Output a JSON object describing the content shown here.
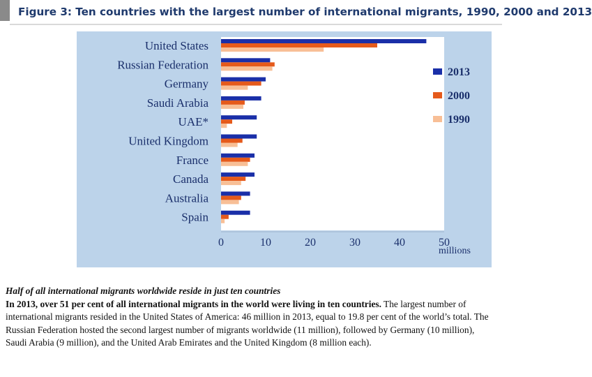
{
  "figure": {
    "title": "Figure 3: Ten countries with the largest number of international migrants, 1990, 2000 and 2013"
  },
  "chart_data": {
    "type": "bar",
    "orientation": "horizontal",
    "categories": [
      "United States",
      "Russian Federation",
      "Germany",
      "Saudi Arabia",
      "UAE*",
      "United Kingdom",
      "France",
      "Canada",
      "Australia",
      "Spain"
    ],
    "series": [
      {
        "name": "2013",
        "color": "#1a2fa8",
        "values": [
          46,
          11,
          10,
          9,
          8,
          8,
          7.5,
          7.5,
          6.5,
          6.5
        ]
      },
      {
        "name": "2000",
        "color": "#e55a1b",
        "values": [
          35,
          12,
          9,
          5.3,
          2.5,
          4.8,
          6.5,
          5.5,
          4.5,
          1.7
        ]
      },
      {
        "name": "1990",
        "color": "#f8bf96",
        "values": [
          23,
          11.5,
          6,
          5,
          1.3,
          3.7,
          6,
          4.5,
          4,
          0.8
        ]
      }
    ],
    "x_ticks": [
      0,
      10,
      20,
      30,
      40,
      50
    ],
    "xlim": [
      0,
      50
    ],
    "x_unit": "millions",
    "legend_position": "right"
  },
  "caption": {
    "heading": "Half of all international migrants worldwide reside in just ten countries",
    "lead": "In 2013, over 51 per cent of all international migrants in the world were living in ten countries.",
    "body": " The largest number of international migrants resided in the United States of America: 46 million in 2013, equal to 19.8 per cent of the world’s total. The Russian Federation hosted the second largest number of migrants worldwide (11 million), followed by Germany (10 million), Saudi Arabia (9 million), and the United Arab Emirates and the United Kingdom (8 million each)."
  }
}
